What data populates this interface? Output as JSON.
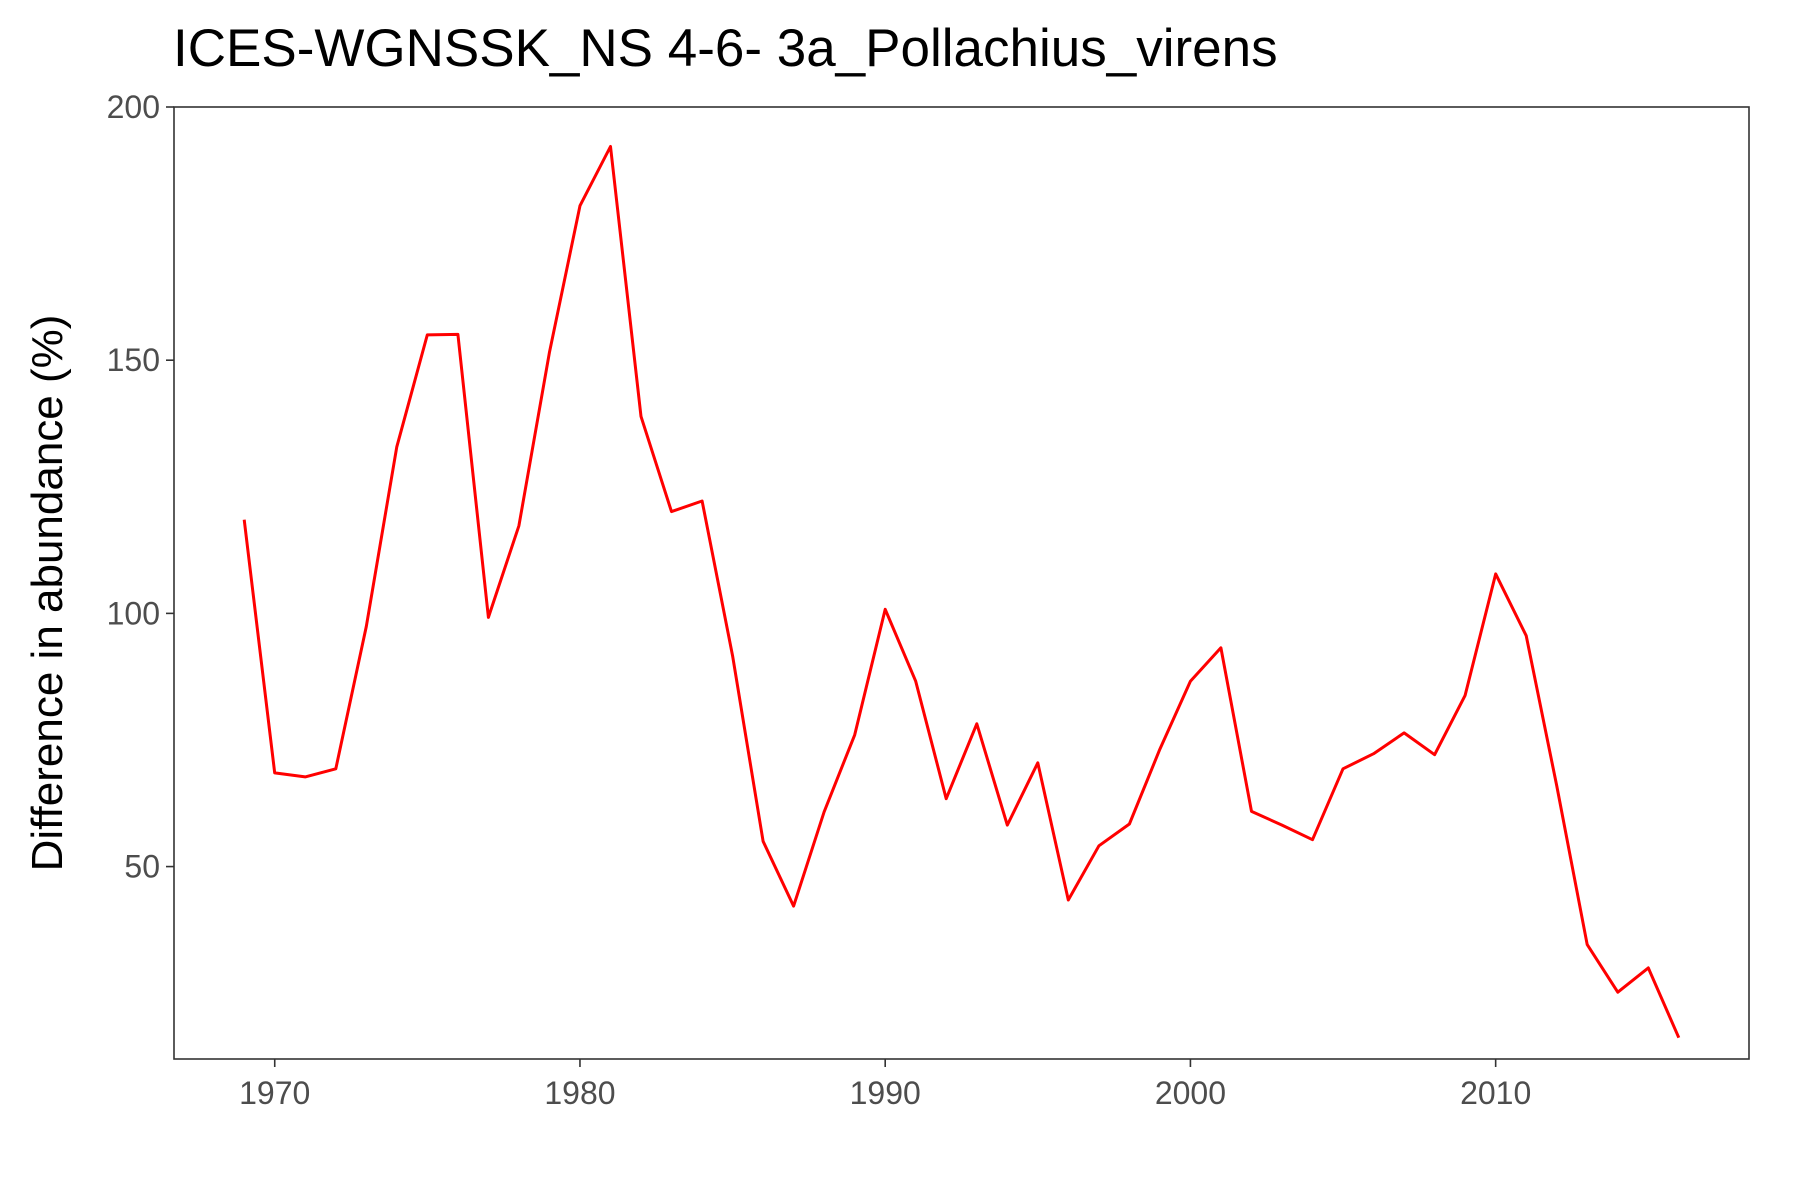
{
  "chart_data": {
    "type": "line",
    "title": "ICES-WGNSSK_NS 4-6- 3a_Pollachius_virens",
    "xlabel": "",
    "ylabel": "Difference in abundance (%)",
    "xlim": [
      1966.7,
      2018.3
    ],
    "ylim": [
      12,
      200
    ],
    "x_ticks": [
      1970,
      1980,
      1990,
      2000,
      2010
    ],
    "y_ticks": [
      50,
      100,
      150,
      200
    ],
    "x_tick_labels": [
      "1970",
      "1980",
      "1990",
      "2000",
      "2010"
    ],
    "y_tick_labels": [
      "50",
      "100",
      "150",
      "200"
    ],
    "grid": false,
    "series": [
      {
        "color": "#ff0000",
        "x": [
          1969,
          1970,
          1971,
          1972,
          1973,
          1974,
          1975,
          1976,
          1977,
          1978,
          1979,
          1980,
          1981,
          1982,
          1983,
          1984,
          1985,
          1986,
          1987,
          1988,
          1989,
          1990,
          1991,
          1992,
          1993,
          1994,
          1995,
          1996,
          1997,
          1998,
          1999,
          2000,
          2001,
          2002,
          2003,
          2004,
          2005,
          2006,
          2007,
          2008,
          2009,
          2010,
          2011,
          2012,
          2013,
          2014,
          2015,
          2016
        ],
        "y": [
          118.5,
          68.5,
          67.7,
          69.3,
          97.4,
          132.9,
          155.0,
          155.1,
          99.2,
          117.3,
          151.5,
          180.5,
          192.2,
          138.9,
          120.1,
          122.2,
          91.6,
          55.0,
          42.2,
          60.8,
          76.0,
          100.8,
          86.6,
          63.4,
          78.2,
          58.2,
          70.5,
          43.4,
          54.1,
          58.4,
          73.2,
          86.6,
          93.2,
          60.9,
          58.2,
          55.3,
          69.3,
          72.3,
          76.4,
          72.1,
          83.8,
          107.8,
          95.6,
          66.0,
          34.6,
          25.2,
          30.0,
          16.2
        ]
      }
    ]
  }
}
